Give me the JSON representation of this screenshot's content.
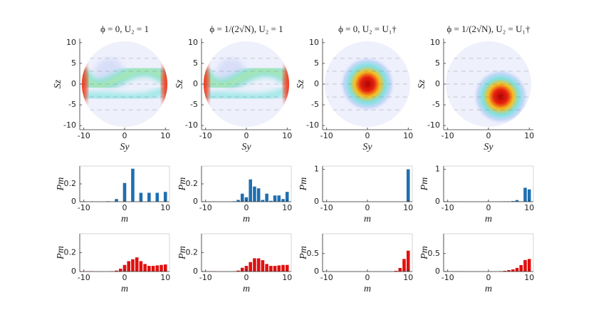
{
  "chart_data": [
    {
      "type": "heatmap",
      "title": "ϕ = 0, U₂ = 1",
      "xlabel": "Sy",
      "ylabel": "Sz",
      "xlim": [
        -11,
        11
      ],
      "ylim": [
        -11,
        11
      ],
      "xticks": [
        -10,
        0,
        10
      ],
      "yticks": [
        -10,
        -5,
        0,
        5,
        10
      ]
    },
    {
      "type": "heatmap",
      "title": "ϕ = 1/(2√N), U₂ = 1",
      "xlabel": "Sy",
      "ylabel": "Sz",
      "xlim": [
        -11,
        11
      ],
      "ylim": [
        -11,
        11
      ],
      "xticks": [
        -10,
        0,
        10
      ],
      "yticks": [
        -10,
        -5,
        0,
        5,
        10
      ]
    },
    {
      "type": "heatmap",
      "title": "ϕ = 0, U₂ = U₁†",
      "xlabel": "Sy",
      "ylabel": "Sz",
      "xlim": [
        -11,
        11
      ],
      "ylim": [
        -11,
        11
      ],
      "xticks": [
        -10,
        0,
        10
      ],
      "yticks": [
        -10,
        -5,
        0,
        5,
        10
      ]
    },
    {
      "type": "heatmap",
      "title": "ϕ = 1/(2√N), U₂ = U₁†",
      "xlabel": "Sy",
      "ylabel": "Sz",
      "xlim": [
        -11,
        11
      ],
      "ylim": [
        -11,
        11
      ],
      "xticks": [
        -10,
        0,
        10
      ],
      "yticks": [
        -10,
        -5,
        0,
        5,
        10
      ]
    },
    {
      "type": "bar",
      "xlabel": "m",
      "ylabel": "Pm",
      "color": "#1f6fb0",
      "x": [
        -10,
        -9,
        -8,
        -7,
        -6,
        -5,
        -4,
        -3,
        -2,
        -1,
        0,
        1,
        2,
        3,
        4,
        5,
        6,
        7,
        8,
        9,
        10
      ],
      "values": [
        0.003,
        0,
        0.003,
        0,
        0,
        0,
        0.005,
        0,
        0.03,
        0,
        0.21,
        0,
        0.37,
        0,
        0.1,
        0,
        0.1,
        0,
        0.1,
        0,
        0.11
      ],
      "xlim": [
        -11,
        11
      ],
      "ylim": [
        0,
        0.4
      ],
      "xticks": [
        -10,
        0,
        10
      ],
      "yticks": [
        0,
        0.2
      ]
    },
    {
      "type": "bar",
      "xlabel": "m",
      "ylabel": "Pm",
      "color": "#1f6fb0",
      "x": [
        -10,
        -9,
        -8,
        -7,
        -6,
        -5,
        -4,
        -3,
        -2,
        -1,
        0,
        1,
        2,
        3,
        4,
        5,
        6,
        7,
        8,
        9,
        10
      ],
      "values": [
        0.003,
        0.003,
        0.003,
        0,
        0,
        0,
        0,
        0.005,
        0.02,
        0.09,
        0.05,
        0.25,
        0.17,
        0.15,
        0.02,
        0.09,
        0.01,
        0.07,
        0.07,
        0.03,
        0.11
      ],
      "xlim": [
        -11,
        11
      ],
      "ylim": [
        0,
        0.4
      ],
      "xticks": [
        -10,
        0,
        10
      ],
      "yticks": [
        0,
        0.2
      ]
    },
    {
      "type": "bar",
      "xlabel": "m",
      "ylabel": "Pm",
      "color": "#1f6fb0",
      "x": [
        -10,
        -9,
        -8,
        -7,
        -6,
        -5,
        -4,
        -3,
        -2,
        -1,
        0,
        1,
        2,
        3,
        4,
        5,
        6,
        7,
        8,
        9,
        10
      ],
      "values": [
        0,
        0,
        0,
        0,
        0,
        0,
        0,
        0,
        0,
        0,
        0,
        0,
        0,
        0,
        0,
        0,
        0,
        0,
        0,
        0,
        1.0
      ],
      "xlim": [
        -11,
        11
      ],
      "ylim": [
        0,
        1.1
      ],
      "xticks": [
        -10,
        0,
        10
      ],
      "yticks": [
        0,
        1
      ]
    },
    {
      "type": "bar",
      "xlabel": "m",
      "ylabel": "Pm",
      "color": "#1f6fb0",
      "x": [
        -10,
        -9,
        -8,
        -7,
        -6,
        -5,
        -4,
        -3,
        -2,
        -1,
        0,
        1,
        2,
        3,
        4,
        5,
        6,
        7,
        8,
        9,
        10
      ],
      "values": [
        0.003,
        0.003,
        0.003,
        0.003,
        0,
        0,
        0,
        0,
        0,
        0,
        0,
        0,
        0,
        0.005,
        0.01,
        0.01,
        0.02,
        0.05,
        0.01,
        0.43,
        0.38
      ],
      "xlim": [
        -11,
        11
      ],
      "ylim": [
        0,
        1.1
      ],
      "xticks": [
        -10,
        0,
        10
      ],
      "yticks": [
        0,
        1
      ]
    },
    {
      "type": "bar",
      "xlabel": "m",
      "ylabel": "Pm",
      "color": "#e01010",
      "x": [
        -10,
        -9,
        -8,
        -7,
        -6,
        -5,
        -4,
        -3,
        -2,
        -1,
        0,
        1,
        2,
        3,
        4,
        5,
        6,
        7,
        8,
        9,
        10
      ],
      "values": [
        0.003,
        0.003,
        0.003,
        0,
        0,
        0,
        0,
        0.003,
        0.01,
        0.03,
        0.07,
        0.11,
        0.13,
        0.15,
        0.11,
        0.08,
        0.06,
        0.06,
        0.065,
        0.07,
        0.075
      ],
      "xlim": [
        -11,
        11
      ],
      "ylim": [
        0,
        0.4
      ],
      "xticks": [
        -10,
        0,
        10
      ],
      "yticks": [
        0,
        0.2
      ]
    },
    {
      "type": "bar",
      "xlabel": "m",
      "ylabel": "Pm",
      "color": "#e01010",
      "x": [
        -10,
        -9,
        -8,
        -7,
        -6,
        -5,
        -4,
        -3,
        -2,
        -1,
        0,
        1,
        2,
        3,
        4,
        5,
        6,
        7,
        8,
        9,
        10
      ],
      "values": [
        0.003,
        0.003,
        0.003,
        0,
        0,
        0,
        0,
        0.003,
        0.01,
        0.04,
        0.06,
        0.1,
        0.14,
        0.14,
        0.12,
        0.08,
        0.06,
        0.06,
        0.065,
        0.07,
        0.07
      ],
      "xlim": [
        -11,
        11
      ],
      "ylim": [
        0,
        0.4
      ],
      "xticks": [
        -10,
        0,
        10
      ],
      "yticks": [
        0,
        0.2
      ]
    },
    {
      "type": "bar",
      "xlabel": "m",
      "ylabel": "Pm",
      "color": "#e01010",
      "x": [
        -10,
        -9,
        -8,
        -7,
        -6,
        -5,
        -4,
        -3,
        -2,
        -1,
        0,
        1,
        2,
        3,
        4,
        5,
        6,
        7,
        8,
        9,
        10
      ],
      "values": [
        0,
        0,
        0,
        0,
        0,
        0,
        0,
        0,
        0,
        0,
        0,
        0,
        0,
        0,
        0,
        0,
        0,
        0.02,
        0.1,
        0.35,
        0.58
      ],
      "xlim": [
        -11,
        11
      ],
      "ylim": [
        0,
        1.05
      ],
      "xticks": [
        -10,
        0,
        10
      ],
      "yticks": [
        0,
        0.5
      ]
    },
    {
      "type": "bar",
      "xlabel": "m",
      "ylabel": "Pm",
      "color": "#e01010",
      "x": [
        -10,
        -9,
        -8,
        -7,
        -6,
        -5,
        -4,
        -3,
        -2,
        -1,
        0,
        1,
        2,
        3,
        4,
        5,
        6,
        7,
        8,
        9,
        10
      ],
      "values": [
        0.003,
        0.003,
        0.003,
        0.003,
        0,
        0,
        0,
        0,
        0,
        0,
        0,
        0,
        0,
        0.01,
        0.02,
        0.04,
        0.06,
        0.1,
        0.18,
        0.32,
        0.35
      ],
      "xlim": [
        -11,
        11
      ],
      "ylim": [
        0,
        1.05
      ],
      "xticks": [
        -10,
        0,
        10
      ],
      "yticks": [
        0,
        0.5
      ]
    }
  ]
}
